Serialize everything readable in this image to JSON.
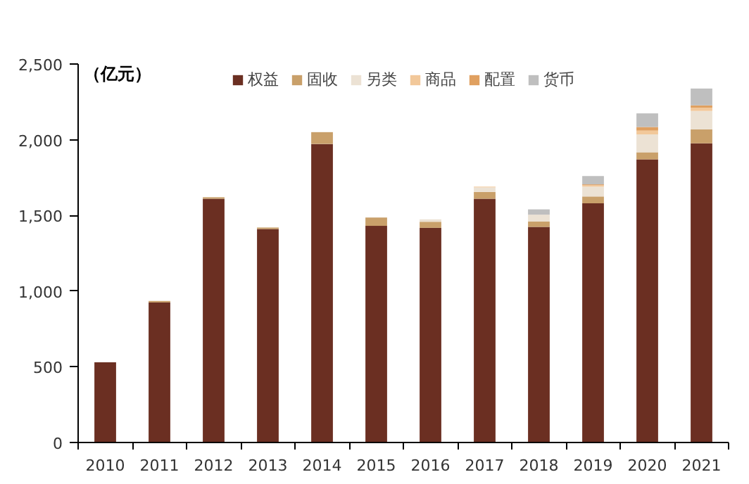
{
  "chart_data": {
    "type": "bar",
    "stacked": true,
    "ylabel": "（亿元）",
    "categories": [
      "2010",
      "2011",
      "2012",
      "2013",
      "2014",
      "2015",
      "2016",
      "2017",
      "2018",
      "2019",
      "2020",
      "2021"
    ],
    "series": [
      {
        "name": "权益",
        "color": "#6b2f22",
        "values": [
          530,
          925,
          1610,
          1410,
          1972,
          1431,
          1418,
          1610,
          1424,
          1580,
          1870,
          1976
        ]
      },
      {
        "name": "固收",
        "color": "#c9a06a",
        "values": [
          0,
          10,
          10,
          10,
          78,
          55,
          40,
          45,
          35,
          45,
          47,
          93
        ]
      },
      {
        "name": "另类",
        "color": "#ece2d4",
        "values": [
          0,
          0,
          0,
          0,
          0,
          0,
          16,
          30,
          46,
          65,
          118,
          121
        ]
      },
      {
        "name": "商品",
        "color": "#f2c89a",
        "values": [
          0,
          0,
          0,
          0,
          0,
          0,
          0,
          5,
          0,
          10,
          25,
          21
        ]
      },
      {
        "name": "配置",
        "color": "#e0a060",
        "values": [
          0,
          0,
          0,
          0,
          0,
          0,
          0,
          0,
          0,
          5,
          24,
          16
        ]
      },
      {
        "name": "货币",
        "color": "#bfbfbf",
        "values": [
          0,
          0,
          0,
          0,
          0,
          0,
          0,
          0,
          35,
          55,
          90,
          111
        ]
      }
    ],
    "ylim": [
      0,
      2500
    ],
    "yticks": [
      0,
      {
        "value": 500,
        "label": "500"
      },
      {
        "value": 1000,
        "label": "1,000"
      },
      {
        "value": 1500,
        "label": "1,500"
      },
      {
        "value": 2000,
        "label": "2,000"
      },
      {
        "value": 2500,
        "label": "2,500"
      }
    ],
    "grid": false,
    "legend": "top"
  }
}
